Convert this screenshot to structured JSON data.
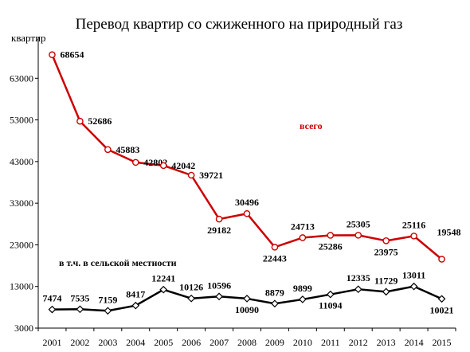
{
  "chart_data": {
    "type": "line",
    "title": "Перевод квартир со сжиженного на природный газ",
    "ylabel": "квартир",
    "xlabel": "",
    "ylim": [
      3000,
      73000
    ],
    "yticks": [
      3000,
      13000,
      23000,
      33000,
      43000,
      53000,
      63000
    ],
    "grid": false,
    "categories": [
      "2001",
      "2002",
      "2003",
      "2004",
      "2005",
      "2006",
      "2007",
      "2008",
      "2009",
      "2010",
      "2011",
      "2012",
      "2013",
      "2014",
      "2015"
    ],
    "series": [
      {
        "name": "всего",
        "color": "#cc0000",
        "marker": "circle",
        "values": [
          68654,
          52686,
          45883,
          42802,
          42042,
          39721,
          29182,
          30496,
          22443,
          24713,
          25286,
          25305,
          23975,
          25116,
          19548
        ],
        "label_pos": [
          "right",
          "right",
          "right",
          "right",
          "right",
          "right",
          "below",
          "above",
          "below",
          "above",
          "below",
          "above",
          "below",
          "above",
          "above-right"
        ]
      },
      {
        "name": "в т.ч. в сельской местности",
        "color": "#000000",
        "marker": "diamond",
        "values": [
          7474,
          7535,
          7159,
          8417,
          12241,
          10126,
          10596,
          10090,
          8879,
          9899,
          11094,
          12335,
          11729,
          13011,
          10021
        ],
        "label_pos": [
          "above",
          "above",
          "above",
          "above",
          "above",
          "above",
          "above",
          "below",
          "above",
          "above",
          "below",
          "above",
          "above",
          "above",
          "below"
        ]
      }
    ]
  },
  "colors": {
    "axis": "#000000",
    "background": "#ffffff"
  }
}
